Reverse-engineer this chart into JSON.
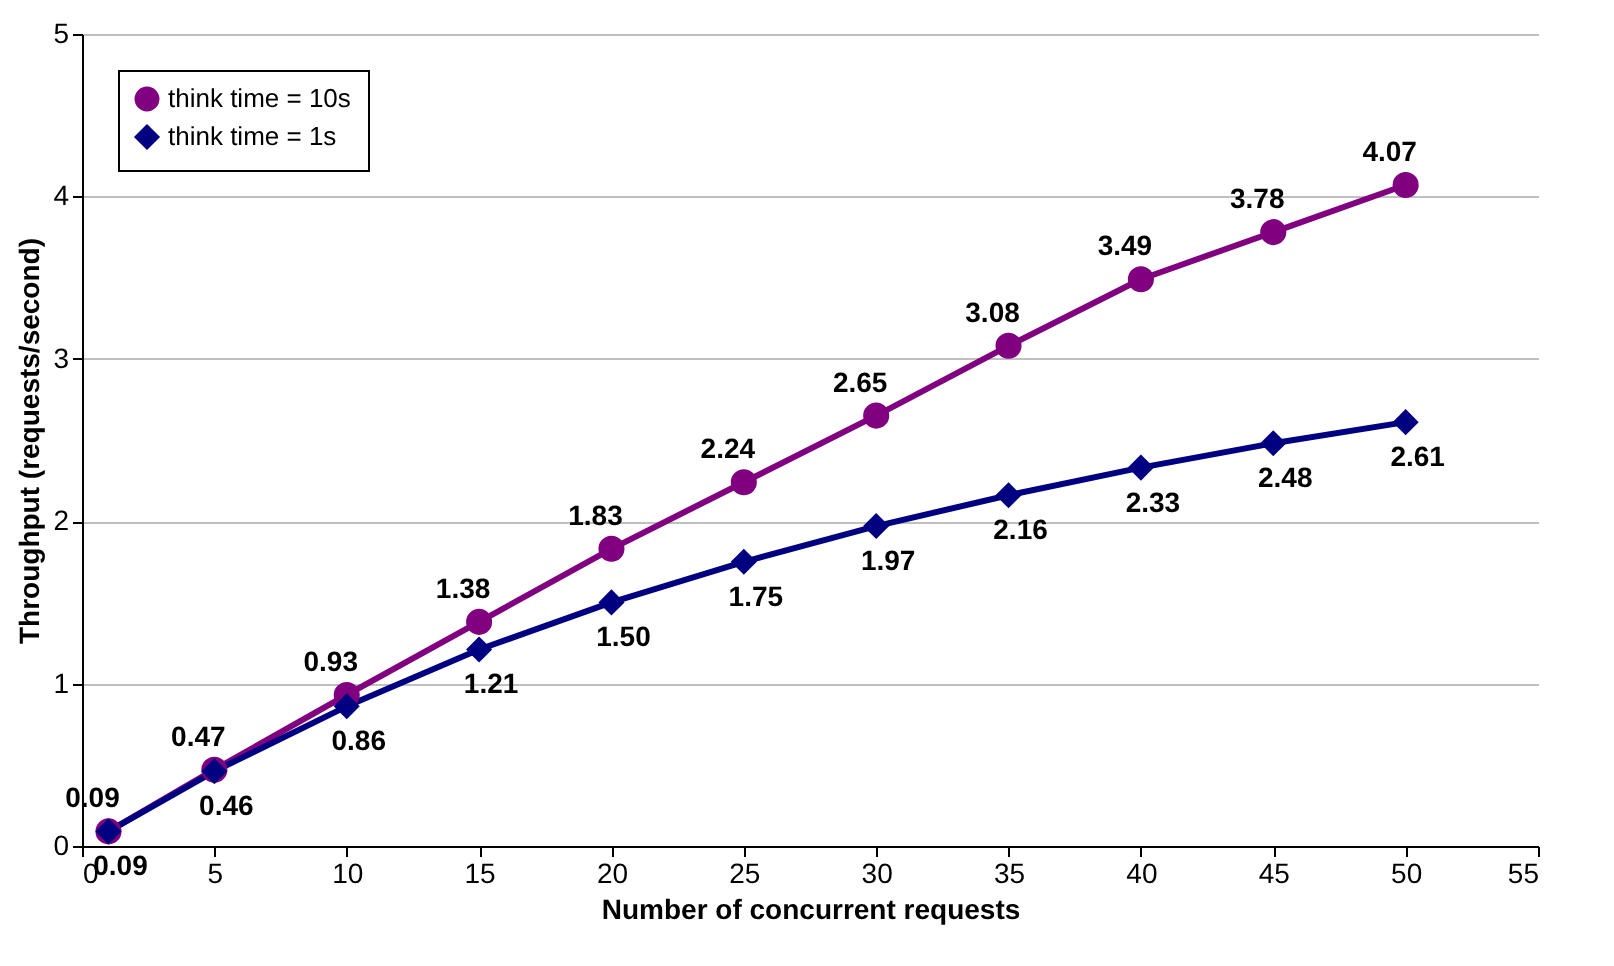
{
  "chart_data": {
    "type": "line",
    "xlabel": "Number of concurrent requests",
    "ylabel": "Throughput (requests/second)",
    "x": [
      1,
      5,
      10,
      15,
      20,
      25,
      30,
      35,
      40,
      45,
      50
    ],
    "series": [
      {
        "name": "think time = 10s",
        "color": "#800080",
        "marker": "circle",
        "values": [
          0.09,
          0.47,
          0.93,
          1.38,
          1.83,
          2.24,
          2.65,
          3.08,
          3.49,
          3.78,
          4.07
        ],
        "value_labels": [
          "0.09",
          "0.47",
          "0.93",
          "1.38",
          "1.83",
          "2.24",
          "2.65",
          "3.08",
          "3.49",
          "3.78",
          "4.07"
        ]
      },
      {
        "name": "think time = 1s",
        "color": "#000080",
        "marker": "diamond",
        "values": [
          0.09,
          0.46,
          0.86,
          1.21,
          1.5,
          1.75,
          1.97,
          2.16,
          2.33,
          2.48,
          2.61
        ],
        "value_labels": [
          "0.09",
          "0.46",
          "0.86",
          "1.21",
          "1.50",
          "1.75",
          "1.97",
          "2.16",
          "2.33",
          "2.48",
          "2.61"
        ]
      }
    ],
    "xlim": [
      0,
      55
    ],
    "xticks": [
      0,
      5,
      10,
      15,
      20,
      25,
      30,
      35,
      40,
      45,
      50,
      55
    ],
    "ylim": [
      0,
      5
    ],
    "yticks": [
      0,
      1,
      2,
      3,
      4,
      5
    ],
    "grid": "y",
    "legend": "top left",
    "line_style": "solid"
  }
}
